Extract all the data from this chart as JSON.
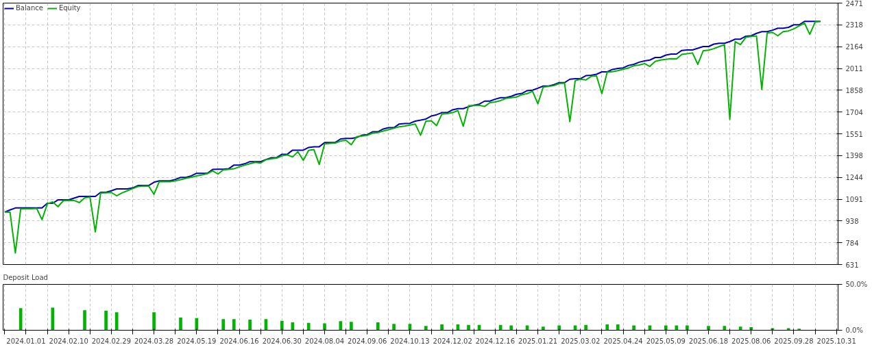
{
  "chart_data": [
    {
      "type": "line",
      "legend": "top left",
      "grid": true,
      "tick_labels": "y",
      "line_style": "solid",
      "categories": [
        null,
        null,
        null,
        null,
        "2024.01.01",
        null,
        null,
        null,
        null,
        null,
        null,
        null,
        "2024.02.10",
        null,
        null,
        null,
        null,
        null,
        null,
        null,
        "2024.02.29",
        null,
        null,
        null,
        null,
        null,
        null,
        null,
        "2024.03.28",
        null,
        null,
        null,
        null,
        null,
        null,
        null,
        "2024.05.19",
        null,
        null,
        null,
        null,
        null,
        null,
        null,
        "2024.06.16",
        null,
        null,
        null,
        null,
        null,
        null,
        null,
        "2024.06.30",
        null,
        null,
        null,
        null,
        null,
        null,
        null,
        "2024.08.04",
        null,
        null,
        null,
        null,
        null,
        null,
        null,
        "2024.09.06",
        null,
        null,
        null,
        null,
        null,
        null,
        null,
        "2024.10.13",
        null,
        null,
        null,
        null,
        null,
        null,
        null,
        "2024.12.02",
        null,
        null,
        null,
        null,
        null,
        null,
        null,
        "2024.12.16",
        null,
        null,
        null,
        null,
        null,
        null,
        null,
        "2025.01.21",
        null,
        null,
        null,
        null,
        null,
        null,
        null,
        "2025.03.02",
        null,
        null,
        null,
        null,
        null,
        null,
        null,
        "2025.04.24",
        null,
        null,
        null,
        null,
        null,
        null,
        null,
        "2025.05.09",
        null,
        null,
        null,
        null,
        null,
        null,
        null,
        "2025.06.18",
        null,
        null,
        null,
        null,
        null,
        null,
        null,
        "2025.08.06",
        null,
        null,
        null,
        null,
        null,
        null,
        null,
        "2025.09.28",
        null,
        null,
        null,
        null,
        null,
        null,
        null,
        "2025.10.31"
      ],
      "ylim": [
        631,
        2471
      ],
      "yticks": [
        631,
        784,
        938,
        1091,
        1244,
        1398,
        1551,
        1704,
        1858,
        2011,
        2164,
        2318,
        2471
      ],
      "series": [
        {
          "name": "Balance",
          "color": "#0000b4",
          "values": [
            1000,
            1015,
            1029,
            1029,
            1029,
            1029,
            1029,
            1029,
            1062,
            1062,
            1086,
            1086,
            1086,
            1098,
            1110,
            1110,
            1110,
            1110,
            1139,
            1139,
            1150,
            1163,
            1163,
            1163,
            1170,
            1187,
            1187,
            1187,
            1210,
            1220,
            1220,
            1220,
            1230,
            1244,
            1244,
            1255,
            1273,
            1273,
            1273,
            1300,
            1302,
            1302,
            1305,
            1331,
            1331,
            1340,
            1355,
            1355,
            1355,
            1370,
            1383,
            1383,
            1407,
            1407,
            1436,
            1436,
            1436,
            1455,
            1460,
            1460,
            1489,
            1489,
            1490,
            1515,
            1518,
            1518,
            1525,
            1541,
            1545,
            1565,
            1565,
            1585,
            1594,
            1594,
            1620,
            1623,
            1625,
            1640,
            1647,
            1655,
            1676,
            1685,
            1700,
            1700,
            1720,
            1728,
            1728,
            1742,
            1752,
            1760,
            1781,
            1781,
            1795,
            1805,
            1805,
            1815,
            1829,
            1835,
            1855,
            1858,
            1872,
            1887,
            1887,
            1897,
            1911,
            1911,
            1935,
            1939,
            1939,
            1960,
            1963,
            1970,
            1987,
            1987,
            2004,
            2011,
            2015,
            2032,
            2040,
            2055,
            2064,
            2070,
            2088,
            2088,
            2105,
            2112,
            2112,
            2138,
            2141,
            2141,
            2153,
            2165,
            2165,
            2182,
            2188,
            2188,
            2200,
            2217,
            2217,
            2238,
            2241,
            2258,
            2270,
            2270,
            2280,
            2294,
            2294,
            2300,
            2318,
            2318,
            2342,
            2342,
            2342,
            2342,
            null,
            null,
            null
          ]
        },
        {
          "name": "Equity",
          "color": "#00b400",
          "values": [
            1000,
            1000,
            712,
            1022,
            1023,
            1024,
            1026,
            947,
            1058,
            1072,
            1038,
            1080,
            1081,
            1082,
            1067,
            1100,
            1105,
            861,
            1134,
            1136,
            1138,
            1115,
            1135,
            1150,
            1165,
            1180,
            1182,
            1184,
            1125,
            1214,
            1214,
            1214,
            1220,
            1228,
            1238,
            1245,
            1255,
            1262,
            1270,
            1290,
            1268,
            1297,
            1300,
            1305,
            1318,
            1330,
            1340,
            1350,
            1345,
            1368,
            1375,
            1380,
            1395,
            1403,
            1388,
            1425,
            1364,
            1434,
            1440,
            1335,
            1480,
            1483,
            1486,
            1500,
            1505,
            1474,
            1530,
            1535,
            1540,
            1556,
            1560,
            1570,
            1580,
            1590,
            1600,
            1605,
            1612,
            1620,
            1541,
            1640,
            1643,
            1609,
            1690,
            1693,
            1700,
            1715,
            1604,
            1748,
            1750,
            1752,
            1743,
            1770,
            1775,
            1785,
            1800,
            1805,
            1810,
            1826,
            1834,
            1850,
            1762,
            1880,
            1885,
            1890,
            1905,
            1908,
            1637,
            1925,
            1935,
            1930,
            1955,
            1958,
            1834,
            1985,
            1988,
            1995,
            2005,
            2015,
            2030,
            2035,
            2045,
            2025,
            2060,
            2070,
            2075,
            2080,
            2078,
            2110,
            2115,
            2120,
            2040,
            2135,
            2140,
            2150,
            2165,
            2178,
            1652,
            2200,
            2179,
            2230,
            2236,
            2240,
            1863,
            2260,
            2265,
            2241,
            2270,
            2275,
            2290,
            2310,
            2330,
            2251,
            2338,
            2342,
            null,
            null,
            null
          ]
        }
      ]
    },
    {
      "type": "bar",
      "title": "Deposit Load",
      "grid": "x",
      "color": "#00b400",
      "categories": [
        null,
        null,
        null,
        null,
        "2024.01.01",
        null,
        null,
        null,
        null,
        null,
        null,
        null,
        "2024.02.10",
        null,
        null,
        null,
        null,
        null,
        null,
        null,
        "2024.02.29",
        null,
        null,
        null,
        null,
        null,
        null,
        null,
        "2024.03.28",
        null,
        null,
        null,
        null,
        null,
        null,
        null,
        "2024.05.19",
        null,
        null,
        null,
        null,
        null,
        null,
        null,
        "2024.06.16",
        null,
        null,
        null,
        null,
        null,
        null,
        null,
        "2024.06.30",
        null,
        null,
        null,
        null,
        null,
        null,
        null,
        "2024.08.04",
        null,
        null,
        null,
        null,
        null,
        null,
        null,
        "2024.09.06",
        null,
        null,
        null,
        null,
        null,
        null,
        null,
        "2024.10.13",
        null,
        null,
        null,
        null,
        null,
        null,
        null,
        "2024.12.02",
        null,
        null,
        null,
        null,
        null,
        null,
        null,
        "2024.12.16",
        null,
        null,
        null,
        null,
        null,
        null,
        null,
        "2025.01.21",
        null,
        null,
        null,
        null,
        null,
        null,
        null,
        "2025.03.02",
        null,
        null,
        null,
        null,
        null,
        null,
        null,
        "2025.04.24",
        null,
        null,
        null,
        null,
        null,
        null,
        null,
        "2025.05.09",
        null,
        null,
        null,
        null,
        null,
        null,
        null,
        "2025.06.18",
        null,
        null,
        null,
        null,
        null,
        null,
        null,
        "2025.08.06",
        null,
        null,
        null,
        null,
        null,
        null,
        null,
        "2025.09.28",
        null,
        null,
        null,
        null,
        null,
        null,
        null,
        "2025.10.31"
      ],
      "values": [
        null,
        null,
        null,
        24.1,
        null,
        null,
        null,
        null,
        null,
        24.7,
        null,
        null,
        null,
        null,
        null,
        21.8,
        null,
        null,
        null,
        21.3,
        null,
        19.5,
        null,
        null,
        null,
        null,
        null,
        null,
        19.5,
        null,
        null,
        null,
        null,
        13.8,
        null,
        null,
        13.2,
        null,
        null,
        null,
        null,
        12.1,
        null,
        12.1,
        null,
        null,
        11.5,
        null,
        null,
        12.1,
        null,
        null,
        10.3,
        null,
        8.6,
        null,
        null,
        8,
        null,
        null,
        7.5,
        null,
        null,
        9.8,
        null,
        9.2,
        null,
        null,
        null,
        null,
        8.6,
        null,
        null,
        6.9,
        null,
        null,
        6.9,
        null,
        null,
        4.6,
        null,
        null,
        6.3,
        null,
        null,
        6.3,
        null,
        5.7,
        null,
        5.7,
        null,
        null,
        null,
        5.7,
        null,
        5.2,
        null,
        null,
        5.2,
        null,
        null,
        4,
        null,
        null,
        5.2,
        null,
        null,
        5.2,
        null,
        5.7,
        null,
        null,
        null,
        6.3,
        null,
        6.3,
        null,
        null,
        5.2,
        null,
        null,
        5.2,
        null,
        null,
        5.2,
        null,
        5.2,
        null,
        5.2,
        null,
        null,
        null,
        4.6,
        null,
        null,
        4.6,
        null,
        null,
        4,
        null,
        3.4,
        null,
        null,
        null,
        2.3,
        null,
        null,
        2.3,
        null,
        1.7,
        null,
        null,
        null,
        null,
        null,
        null,
        null
      ],
      "ylim": [
        0,
        50
      ],
      "yticks": [
        {
          "value": 0,
          "label": "0.0%"
        },
        {
          "value": 50,
          "label": "50.0%"
        }
      ]
    }
  ]
}
